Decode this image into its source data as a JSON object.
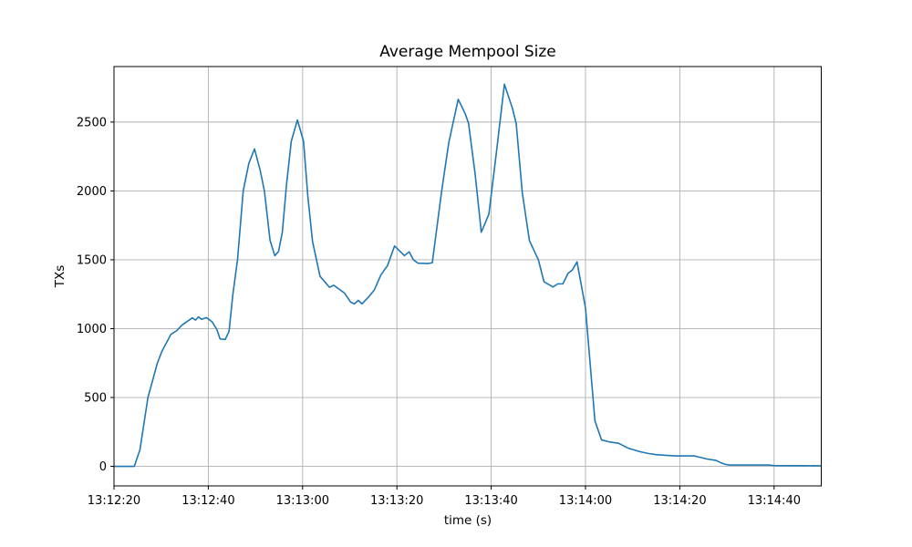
{
  "chart_data": {
    "type": "line",
    "title": "Average Mempool Size",
    "xlabel": "time (s)",
    "ylabel": "TXs",
    "grid": true,
    "legend_position": "none",
    "background_color": "#ffffff",
    "grid_color": "#b0b0b0",
    "axis_color": "#000000",
    "xlim_seconds": [
      0,
      150
    ],
    "ylim": [
      -142,
      2903
    ],
    "x_tick_labels": [
      "13:12:20",
      "13:12:40",
      "13:13:00",
      "13:13:20",
      "13:13:40",
      "13:14:00",
      "13:14:20",
      "13:14:40"
    ],
    "x_tick_seconds": [
      0,
      20,
      40,
      60,
      80,
      100,
      120,
      140
    ],
    "y_ticks": [
      0,
      500,
      1000,
      1500,
      2000,
      2500
    ],
    "series": [
      {
        "name": "average-mempool-size",
        "color": "#1f77b4",
        "line_width": 1.6,
        "x_seconds": [
          0,
          2,
          4.3,
          5.5,
          7.2,
          9.2,
          10.2,
          12.1,
          13.3,
          14.4,
          16.6,
          17.3,
          17.9,
          18.6,
          19.6,
          20.8,
          21.8,
          22.5,
          23.6,
          24.4,
          25.2,
          26.2,
          27.4,
          28.6,
          29.8,
          31,
          31.9,
          33.1,
          34.1,
          34.9,
          35.7,
          36.6,
          37.6,
          38.9,
          40.2,
          41.1,
          42.1,
          43.7,
          45.7,
          46.6,
          48.9,
          50.2,
          51,
          51.8,
          52.6,
          54,
          55.2,
          56.6,
          58,
          59.5,
          61.6,
          62.6,
          63.5,
          64.5,
          66.5,
          67.5,
          69.5,
          71,
          73,
          74.5,
          75.2,
          76.6,
          77.9,
          79.5,
          81,
          82.8,
          84.5,
          85.3,
          86.6,
          88.1,
          90,
          91.2,
          93.1,
          94.1,
          95.2,
          96.3,
          97.2,
          98.2,
          100,
          102,
          103.4,
          105,
          107,
          109,
          111.5,
          113.4,
          115,
          117,
          119,
          123,
          124.4,
          125.7,
          127.7,
          128.6,
          129.6,
          130.5,
          138.8,
          140,
          146,
          150
        ],
        "y_values": [
          0,
          0,
          0,
          120,
          500,
          750,
          838,
          960,
          985,
          1025,
          1078,
          1062,
          1085,
          1068,
          1080,
          1050,
          995,
          925,
          922,
          980,
          1246,
          1500,
          2000,
          2200,
          2305,
          2150,
          2000,
          1640,
          1530,
          1560,
          1700,
          2050,
          2360,
          2515,
          2360,
          1965,
          1634,
          1380,
          1300,
          1315,
          1258,
          1192,
          1180,
          1205,
          1180,
          1230,
          1280,
          1390,
          1457,
          1600,
          1530,
          1558,
          1500,
          1475,
          1473,
          1478,
          2000,
          2350,
          2665,
          2560,
          2490,
          2120,
          1700,
          1830,
          2250,
          2775,
          2600,
          2490,
          1985,
          1640,
          1500,
          1340,
          1302,
          1325,
          1325,
          1402,
          1425,
          1485,
          1150,
          330,
          192,
          178,
          168,
          133,
          107,
          93,
          85,
          80,
          76,
          76,
          65,
          54,
          43,
          28,
          15,
          10,
          10,
          6,
          5,
          4
        ]
      }
    ]
  }
}
